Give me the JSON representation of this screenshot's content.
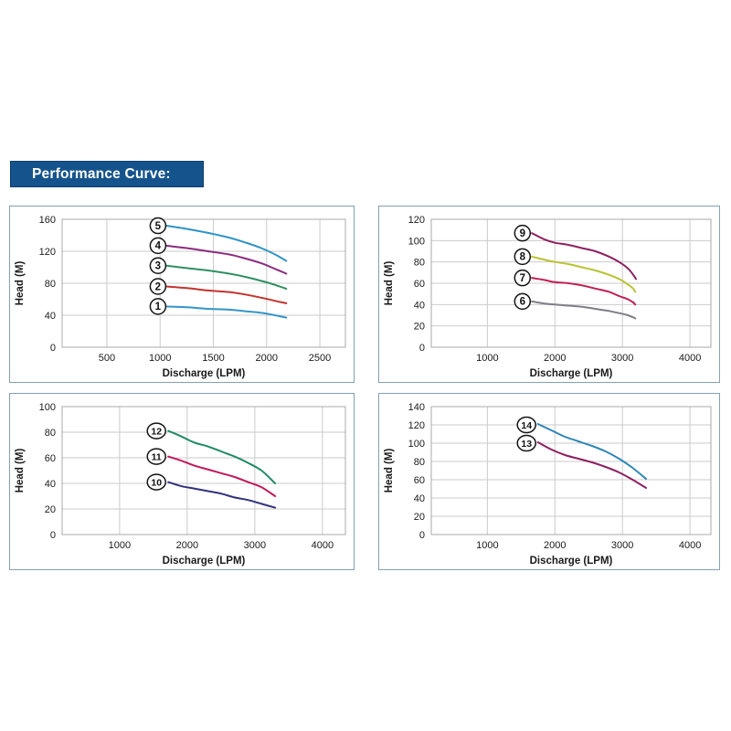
{
  "header": {
    "title": "Performance Curve:",
    "bg_color": "#15538C",
    "text_color": "#FFFFFF"
  },
  "chart_data": [
    {
      "type": "line",
      "name": "performance-curve-models-1-5",
      "xlabel": "Discharge (LPM)",
      "ylabel": "Head (M)",
      "xlim": [
        80,
        2740
      ],
      "ylim": [
        0,
        160
      ],
      "xticks": [
        500,
        1000,
        1500,
        2000,
        2500
      ],
      "yticks": [
        0,
        40,
        80,
        120,
        160
      ],
      "grid": true,
      "legend_position": "curve-start-circled-numbers",
      "series": [
        {
          "id": "5",
          "color": "#2E93C6",
          "label_x": 980,
          "label_y": 152,
          "points": [
            [
              1060,
              152
            ],
            [
              1250,
              148
            ],
            [
              1450,
              143
            ],
            [
              1650,
              137
            ],
            [
              1800,
              131
            ],
            [
              1950,
              124
            ],
            [
              2080,
              116
            ],
            [
              2185,
              108
            ]
          ]
        },
        {
          "id": "4",
          "color": "#8B2B80",
          "label_x": 980,
          "label_y": 127,
          "points": [
            [
              1060,
              127
            ],
            [
              1250,
              124
            ],
            [
              1450,
              120
            ],
            [
              1650,
              116
            ],
            [
              1800,
              111
            ],
            [
              1950,
              105
            ],
            [
              2080,
              98
            ],
            [
              2185,
              92
            ]
          ]
        },
        {
          "id": "3",
          "color": "#2E8F63",
          "label_x": 980,
          "label_y": 102,
          "points": [
            [
              1060,
              102
            ],
            [
              1250,
              99
            ],
            [
              1450,
              96
            ],
            [
              1650,
              92
            ],
            [
              1800,
              88
            ],
            [
              1950,
              83
            ],
            [
              2080,
              78
            ],
            [
              2185,
              73
            ]
          ]
        },
        {
          "id": "2",
          "color": "#C4332F",
          "label_x": 980,
          "label_y": 76,
          "points": [
            [
              1060,
              76
            ],
            [
              1250,
              74
            ],
            [
              1450,
              71
            ],
            [
              1650,
              69
            ],
            [
              1800,
              66
            ],
            [
              1950,
              62
            ],
            [
              2080,
              58
            ],
            [
              2185,
              55
            ]
          ]
        },
        {
          "id": "1",
          "color": "#3595C8",
          "label_x": 980,
          "label_y": 51,
          "points": [
            [
              1060,
              51
            ],
            [
              1250,
              50
            ],
            [
              1450,
              48
            ],
            [
              1650,
              47
            ],
            [
              1800,
              45
            ],
            [
              1950,
              43
            ],
            [
              2080,
              40
            ],
            [
              2185,
              37
            ]
          ]
        }
      ]
    },
    {
      "type": "line",
      "name": "performance-curve-models-6-9",
      "xlabel": "Discharge (LPM)",
      "ylabel": "Head (M)",
      "xlim": [
        170,
        4310
      ],
      "ylim": [
        0,
        120
      ],
      "xticks": [
        1000,
        2000,
        3000,
        4000
      ],
      "yticks": [
        0,
        20,
        40,
        60,
        80,
        100,
        120
      ],
      "grid": true,
      "legend_position": "curve-start-circled-numbers",
      "series": [
        {
          "id": "9",
          "color": "#8E2060",
          "label_x": 1520,
          "label_y": 107,
          "points": [
            [
              1660,
              107
            ],
            [
              1850,
              101
            ],
            [
              2000,
              98
            ],
            [
              2200,
              96
            ],
            [
              2400,
              93
            ],
            [
              2600,
              90
            ],
            [
              2800,
              85
            ],
            [
              2950,
              80
            ],
            [
              3080,
              74
            ],
            [
              3160,
              68
            ],
            [
              3200,
              64
            ]
          ]
        },
        {
          "id": "8",
          "color": "#B9C232",
          "label_x": 1520,
          "label_y": 85,
          "points": [
            [
              1660,
              85
            ],
            [
              1850,
              82
            ],
            [
              2000,
              80
            ],
            [
              2200,
              78
            ],
            [
              2400,
              75
            ],
            [
              2600,
              72
            ],
            [
              2800,
              68
            ],
            [
              2950,
              64
            ],
            [
              3080,
              59
            ],
            [
              3160,
              55
            ],
            [
              3190,
              52
            ]
          ]
        },
        {
          "id": "7",
          "color": "#C21E56",
          "label_x": 1520,
          "label_y": 65,
          "points": [
            [
              1660,
              65
            ],
            [
              1850,
              63
            ],
            [
              2000,
              61
            ],
            [
              2200,
              60
            ],
            [
              2400,
              58
            ],
            [
              2600,
              55
            ],
            [
              2800,
              52
            ],
            [
              2950,
              48
            ],
            [
              3080,
              45
            ],
            [
              3160,
              42
            ],
            [
              3190,
              40
            ]
          ]
        },
        {
          "id": "6",
          "color": "#7E7E88",
          "label_x": 1520,
          "label_y": 43,
          "points": [
            [
              1660,
              43
            ],
            [
              1850,
              41
            ],
            [
              2000,
              40
            ],
            [
              2200,
              39
            ],
            [
              2400,
              38
            ],
            [
              2600,
              36
            ],
            [
              2800,
              34
            ],
            [
              2950,
              32
            ],
            [
              3080,
              30
            ],
            [
              3160,
              28
            ],
            [
              3190,
              27
            ]
          ]
        }
      ]
    },
    {
      "type": "line",
      "name": "performance-curve-models-10-12",
      "xlabel": "Discharge (LPM)",
      "ylabel": "Head (M)",
      "xlim": [
        150,
        4340
      ],
      "ylim": [
        0,
        100
      ],
      "xticks": [
        1000,
        2000,
        3000,
        4000
      ],
      "yticks": [
        0,
        20,
        40,
        60,
        80,
        100
      ],
      "grid": true,
      "legend_position": "curve-start-circled-numbers",
      "series": [
        {
          "id": "12",
          "color": "#1F8A66",
          "label_x": 1545,
          "label_y": 81,
          "points": [
            [
              1720,
              81
            ],
            [
              1900,
              77
            ],
            [
              2100,
              72
            ],
            [
              2300,
              69
            ],
            [
              2500,
              65
            ],
            [
              2700,
              61
            ],
            [
              2900,
              56
            ],
            [
              3100,
              50
            ],
            [
              3300,
              40
            ]
          ]
        },
        {
          "id": "11",
          "color": "#C2185B",
          "label_x": 1545,
          "label_y": 61,
          "points": [
            [
              1720,
              61
            ],
            [
              1900,
              58
            ],
            [
              2100,
              54
            ],
            [
              2300,
              51
            ],
            [
              2500,
              48
            ],
            [
              2700,
              45
            ],
            [
              2900,
              41
            ],
            [
              3100,
              37
            ],
            [
              3300,
              30
            ]
          ]
        },
        {
          "id": "10",
          "color": "#32327E",
          "label_x": 1545,
          "label_y": 41,
          "points": [
            [
              1720,
              41
            ],
            [
              1900,
              38
            ],
            [
              2100,
              36
            ],
            [
              2300,
              34
            ],
            [
              2500,
              32
            ],
            [
              2700,
              29
            ],
            [
              2900,
              27
            ],
            [
              3100,
              24
            ],
            [
              3300,
              21
            ]
          ]
        }
      ]
    },
    {
      "type": "line",
      "name": "performance-curve-models-13-14",
      "xlabel": "Discharge (LPM)",
      "ylabel": "Head (M)",
      "xlim": [
        170,
        4310
      ],
      "ylim": [
        0,
        140
      ],
      "xticks": [
        1000,
        2000,
        3000,
        4000
      ],
      "yticks": [
        0,
        20,
        40,
        60,
        80,
        100,
        120,
        140
      ],
      "grid": true,
      "legend_position": "curve-start-circled-numbers",
      "series": [
        {
          "id": "14",
          "color": "#2E86B5",
          "label_x": 1580,
          "label_y": 120,
          "points": [
            [
              1750,
              121
            ],
            [
              1950,
              114
            ],
            [
              2150,
              107
            ],
            [
              2350,
              102
            ],
            [
              2550,
              97
            ],
            [
              2750,
              91
            ],
            [
              2950,
              83
            ],
            [
              3150,
              73
            ],
            [
              3350,
              61
            ]
          ]
        },
        {
          "id": "13",
          "color": "#8E2060",
          "label_x": 1580,
          "label_y": 100,
          "points": [
            [
              1750,
              101
            ],
            [
              1950,
              93
            ],
            [
              2150,
              87
            ],
            [
              2350,
              83
            ],
            [
              2550,
              79
            ],
            [
              2750,
              74
            ],
            [
              2950,
              68
            ],
            [
              3150,
              60
            ],
            [
              3350,
              51
            ]
          ]
        }
      ]
    }
  ]
}
